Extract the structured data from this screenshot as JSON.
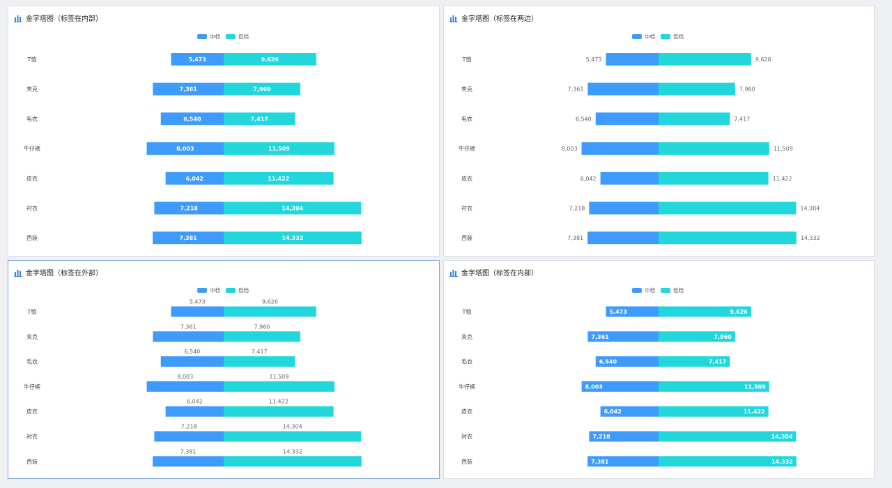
{
  "colors": {
    "mid": "#3e9bfb",
    "low": "#22d7dc",
    "icon": "#2f80ed"
  },
  "icons": {
    "panel": "bar-chart-icon"
  },
  "chart_data": [
    {
      "type": "bar",
      "subtype": "pyramid",
      "title": "金字塔图（标签在内部）",
      "label_position": "inside",
      "categories": [
        "T恤",
        "夹克",
        "毛衣",
        "牛仔裤",
        "皮衣",
        "衬衣",
        "西装"
      ],
      "series": [
        {
          "name": "中档",
          "values": [
            5473,
            7361,
            6540,
            8003,
            6042,
            7218,
            7381
          ]
        },
        {
          "name": "低档",
          "values": [
            9626,
            7960,
            7417,
            11509,
            11422,
            14304,
            14332
          ]
        }
      ],
      "value_labels": {
        "中档": [
          "5,473",
          "7,361",
          "6,540",
          "8,003",
          "6,042",
          "7,218",
          "7,381"
        ],
        "低档": [
          "9,626",
          "7,960",
          "7,417",
          "11,509",
          "11,422",
          "14,304",
          "14,332"
        ]
      },
      "legend": "top-center"
    },
    {
      "type": "bar",
      "subtype": "pyramid",
      "title": "金字塔图（标签在两边）",
      "label_position": "sides",
      "categories": [
        "T恤",
        "夹克",
        "毛衣",
        "牛仔裤",
        "皮衣",
        "衬衣",
        "西装"
      ],
      "series": [
        {
          "name": "中档",
          "values": [
            5473,
            7361,
            6540,
            8003,
            6042,
            7218,
            7381
          ]
        },
        {
          "name": "低档",
          "values": [
            9626,
            7960,
            7417,
            11509,
            11422,
            14304,
            14332
          ]
        }
      ],
      "value_labels": {
        "中档": [
          "5,473",
          "7,361",
          "6,540",
          "8,003",
          "6,042",
          "7,218",
          "7,381"
        ],
        "低档": [
          "9,626",
          "7,960",
          "7,417",
          "11,509",
          "11,422",
          "14,304",
          "14,332"
        ]
      },
      "legend": "top-center"
    },
    {
      "type": "bar",
      "subtype": "pyramid",
      "title": "金字塔图（标签在外部）",
      "label_position": "outside",
      "categories": [
        "T恤",
        "夹克",
        "毛衣",
        "牛仔裤",
        "皮衣",
        "衬衣",
        "西装"
      ],
      "series": [
        {
          "name": "中档",
          "values": [
            5473,
            7361,
            6540,
            8003,
            6042,
            7218,
            7381
          ]
        },
        {
          "name": "低档",
          "values": [
            9626,
            7960,
            7417,
            11509,
            11422,
            14304,
            14332
          ]
        }
      ],
      "value_labels": {
        "中档": [
          "5,473",
          "7,361",
          "6,540",
          "8,003",
          "6,042",
          "7,218",
          "7,381"
        ],
        "低档": [
          "9,626",
          "7,960",
          "7,417",
          "11,509",
          "11,422",
          "14,304",
          "14,332"
        ]
      },
      "legend": "top-center"
    },
    {
      "type": "bar",
      "subtype": "pyramid",
      "title": "金字塔图（标签在内部）",
      "label_position": "inside-end",
      "categories": [
        "T恤",
        "夹克",
        "毛衣",
        "牛仔裤",
        "皮衣",
        "衬衣",
        "西装"
      ],
      "series": [
        {
          "name": "中档",
          "values": [
            5473,
            7361,
            6540,
            8003,
            6042,
            7218,
            7381
          ]
        },
        {
          "name": "低档",
          "values": [
            9626,
            7960,
            7417,
            11509,
            11422,
            14304,
            14332
          ]
        }
      ],
      "value_labels": {
        "中档": [
          "5,473",
          "7,361",
          "6,540",
          "8,003",
          "6,042",
          "7,218",
          "7,381"
        ],
        "低档": [
          "9,626",
          "7,960",
          "7,417",
          "11,509",
          "11,422",
          "14,304",
          "14,332"
        ]
      },
      "legend": "top-center"
    }
  ]
}
